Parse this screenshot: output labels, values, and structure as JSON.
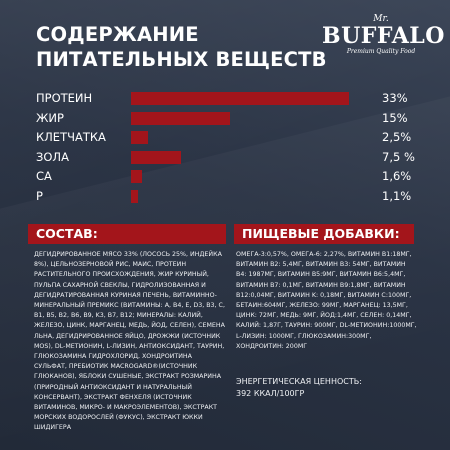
{
  "title": {
    "line1": "СОДЕРЖАНИЕ",
    "line2": "ПИТАТЕЛЬНЫХ ВЕЩЕСТВ"
  },
  "logo": {
    "mr": "Mr.",
    "brand": "BUFFALO",
    "tagline": "Premium Quality Food"
  },
  "colors": {
    "background": "#2b3546",
    "accent": "#a3151b",
    "text": "#ffffff"
  },
  "chart_data": {
    "type": "bar",
    "orientation": "horizontal",
    "categories": [
      "ПРОТЕИН",
      "ЖИР",
      "КЛЕТЧАТКА",
      "ЗОЛА",
      "CA",
      "P"
    ],
    "values": [
      33,
      15,
      2.5,
      7.5,
      1.6,
      1.1
    ],
    "value_labels": [
      "33%",
      "15%",
      "2,5%",
      "7,5 %",
      "1,6%",
      "1,1%"
    ],
    "xlim": [
      0,
      33
    ],
    "grid": false,
    "legend": "none"
  },
  "composition": {
    "heading": "СОСТАВ:",
    "text": "ДЕГИДРИРОВАННОЕ МЯСО 33% (ЛОСОСЬ 25%, ИНДЕЙКА 8%), ЦЕЛЬНОЗЕРНОВОЙ РИС, МАИС, ПРОТЕИН РАСТИТЕЛЬНОГО ПРОИСХОЖДЕНИЯ, ЖИР КУРИНЫЙ, ПУЛЬПА САХАРНОЙ СВЕКЛЫ, ГИДРОЛИЗОВАННАЯ И ДЕГИДРАТИРОВАННАЯ КУРИНАЯ ПЕЧЕНЬ, ВИТАМИННО-МИНЕРАЛЬНЫЙ ПРЕМИКС (ВИТАМИНЫ: A, B4, E, D3, B3, C, B1, B5, B2, B6, B9, K3, B7, B12; МИНЕРАЛЫ: КАЛИЙ, ЖЕЛЕЗО, ЦИНК, МАРГАНЕЦ, МЕДЬ, ЙОД, СЕЛЕН), СЕМЕНА ЛЬНА, ДЕГИДРИРОВАННОЕ ЯЙЦО, ДРОЖЖИ (ИСТОЧНИК MOS), DL-МЕТИОНИН, L-ЛИЗИН, АНТИОКСИДАНТ, ТАУРИН, ГЛЮКОЗАМИНА ГИДРОХЛОРИД, ХОНДРОИТИНА СУЛЬФАТ, ПРЕБИОТИК MACROGARD®(ИСТОЧНИК ГЛЮКАНОВ), ЯБЛОКИ СУШЕНЫЕ, ЭКСТРАКТ РОЗМАРИНА (ПРИРОДНЫЙ АНТИОКСИДАНТ И НАТУРАЛЬНЫЙ КОНСЕРВАНТ), ЭКСТРАКТ ФЕНХЕЛЯ (ИСТОЧНИК ВИТАМИНОВ, МИКРО- И МАКРОЭЛЕМЕНТОВ), ЭКСТРАКТ МОРСКИХ ВОДОРОСЛЕЙ (ФУКУС), ЭКСТРАКТ ЮККИ ШИДИГЕРА"
  },
  "additives": {
    "heading": "ПИЩЕВЫЕ ДОБАВКИ:",
    "text": "ОМЕГА-3:0,57%, ОМЕГА-6: 2,27%, ВИТАМИН B1:18МГ, ВИТАМИН B2: 5,4МГ, ВИТАМИН B3: 54МГ, ВИТАМИН B4: 1987МГ, ВИТАМИН B5:9МГ, ВИТАМИН B6:5,4МГ, ВИТАМИН B7: 0,1МГ, ВИТАМИН B9:1,8МГ, ВИТАМИН B12:0,04МГ, ВИТАМИН K: 0,18МГ, ВИТАМИН C:100МГ, БЕТАИН:604МГ, ЖЕЛЕЗО: 99МГ, МАРГАНЕЦ: 13,5МГ, ЦИНК: 72МГ, МЕДЬ: 9МГ, ЙОД:1,4МГ, СЕЛЕН: 0,14МГ, КАЛИЙ: 1,87Г, ТАУРИН: 900МГ, DL-МЕТИОНИН:1000МГ, L-ЛИЗИН: 1000МГ, ГЛЮКОЗАМИН:300МГ, ХОНДРОИТИН: 200МГ",
    "energy_label": "ЭНЕРГЕТИЧЕСКАЯ ЦЕННОСТЬ:",
    "energy_value": "392 ККАЛ/100ГР"
  }
}
